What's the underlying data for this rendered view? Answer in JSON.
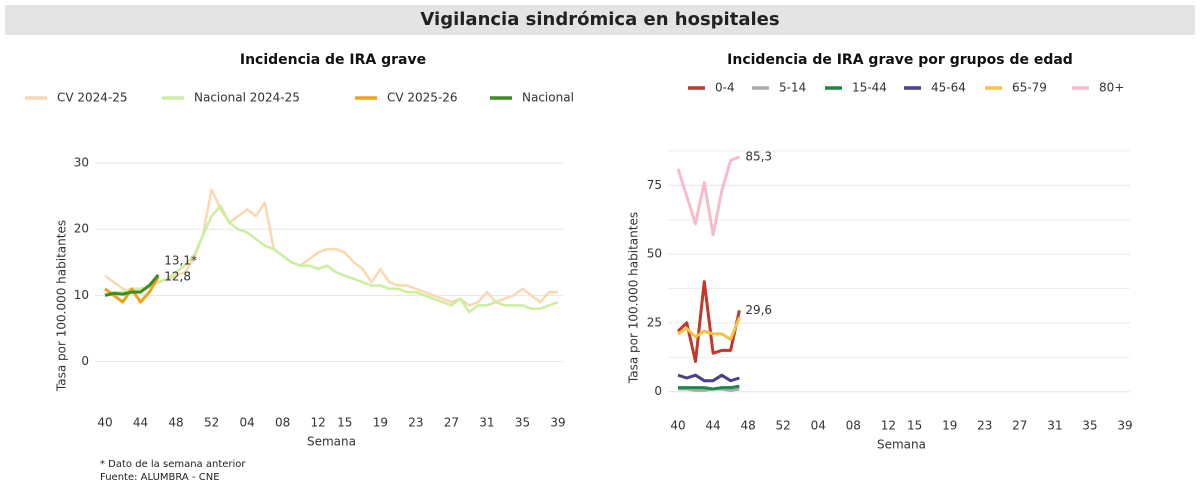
{
  "header": {
    "title": "Vigilancia sindrómica en hospitales"
  },
  "footnote": "* Dato de la semana anterior",
  "source": "Fuente: ALUMBRA - CNE",
  "chart_data": [
    {
      "type": "line",
      "title": "Incidencia de IRA grave",
      "xlabel": "Semana",
      "ylabel": "Tasa por 100.000 habitantes",
      "categories": [
        "40",
        null,
        null,
        null,
        "44",
        null,
        null,
        null,
        "48",
        null,
        null,
        null,
        "52",
        null,
        null,
        null,
        "04",
        null,
        null,
        null,
        "08",
        null,
        null,
        null,
        "12",
        null,
        null,
        "15",
        null,
        null,
        null,
        "19",
        null,
        null,
        null,
        "23",
        null,
        null,
        null,
        "27",
        null,
        null,
        null,
        "31",
        null,
        null,
        null,
        "35",
        null,
        null,
        null,
        "39"
      ],
      "ylim": [
        -7,
        30
      ],
      "yticks": [
        0,
        10,
        20,
        30
      ],
      "grid": true,
      "series": [
        {
          "name": "CV 2024-25",
          "color": "#fbd8b0",
          "values": [
            13,
            12,
            11,
            10.5,
            11,
            11.5,
            12,
            12.5,
            13,
            13.5,
            15.5,
            19,
            26,
            23,
            21,
            22,
            23,
            22,
            24,
            17,
            16,
            15,
            14.5,
            15.5,
            16.5,
            17,
            17,
            16.5,
            15,
            14,
            12,
            14,
            12,
            11.5,
            11.5,
            11,
            10.5,
            10,
            9.5,
            9,
            9.5,
            8.5,
            9,
            10.5,
            9,
            9.5,
            10,
            11,
            10,
            9,
            10.5,
            10.5
          ]
        },
        {
          "name": "Nacional 2024-25",
          "color": "#c9ef9f",
          "values": [
            10,
            10.5,
            10.5,
            11,
            11,
            11.5,
            12,
            12.5,
            13.5,
            14.5,
            16,
            19,
            22,
            23.5,
            21,
            20,
            19.5,
            18.5,
            17.5,
            17,
            16,
            15,
            14.5,
            14.5,
            14,
            14.5,
            13.5,
            13,
            12.5,
            12,
            11.5,
            11.5,
            11,
            11,
            10.5,
            10.5,
            10,
            9.5,
            9,
            8.5,
            9.5,
            7.5,
            8.5,
            8.5,
            9,
            8.5,
            8.5,
            8.5,
            8,
            8,
            8.5,
            9
          ]
        },
        {
          "name": "CV 2025-26",
          "color": "#f0a020",
          "values": [
            11,
            10,
            9,
            11,
            9,
            10.5,
            12.8,
            null,
            null,
            null,
            null,
            null,
            null,
            null,
            null,
            null,
            null,
            null,
            null,
            null,
            null,
            null,
            null,
            null,
            null,
            null,
            null,
            null,
            null,
            null,
            null,
            null,
            null,
            null,
            null,
            null,
            null,
            null,
            null,
            null,
            null,
            null,
            null,
            null,
            null,
            null,
            null,
            null,
            null,
            null,
            null,
            null
          ],
          "value_labels": [
            null,
            null,
            null,
            null,
            null,
            null,
            "12,8",
            null,
            null,
            null,
            null,
            null,
            null,
            null,
            null,
            null,
            null,
            null,
            null,
            null,
            null,
            null,
            null,
            null,
            null,
            null,
            null,
            null,
            null,
            null,
            null,
            null,
            null,
            null,
            null,
            null,
            null,
            null,
            null,
            null,
            null,
            null,
            null,
            null,
            null,
            null,
            null,
            null,
            null,
            null,
            null,
            null
          ]
        },
        {
          "name": "Nacional",
          "color": "#3d8c1f",
          "values": [
            10,
            10.3,
            10.2,
            10.5,
            10.5,
            11.5,
            13.1,
            null,
            null,
            null,
            null,
            null,
            null,
            null,
            null,
            null,
            null,
            null,
            null,
            null,
            null,
            null,
            null,
            null,
            null,
            null,
            null,
            null,
            null,
            null,
            null,
            null,
            null,
            null,
            null,
            null,
            null,
            null,
            null,
            null,
            null,
            null,
            null,
            null,
            null,
            null,
            null,
            null,
            null,
            null,
            null,
            null
          ],
          "value_labels": [
            null,
            null,
            null,
            null,
            null,
            null,
            "13,1*",
            null,
            null,
            null,
            null,
            null,
            null,
            null,
            null,
            null,
            null,
            null,
            null,
            null,
            null,
            null,
            null,
            null,
            null,
            null,
            null,
            null,
            null,
            null,
            null,
            null,
            null,
            null,
            null,
            null,
            null,
            null,
            null,
            null,
            null,
            null,
            null,
            null,
            null,
            null,
            null,
            null,
            null,
            null,
            null,
            null
          ]
        }
      ]
    },
    {
      "type": "line",
      "title": "Incidencia de IRA grave por grupos de edad",
      "xlabel": "Semana",
      "ylabel": "Tasa por 100.000 habitantes",
      "categories": [
        "40",
        null,
        null,
        null,
        "44",
        null,
        null,
        null,
        "48",
        null,
        null,
        null,
        "52",
        null,
        null,
        null,
        "04",
        null,
        null,
        null,
        "08",
        null,
        null,
        null,
        "12",
        null,
        null,
        "15",
        null,
        null,
        null,
        "19",
        null,
        null,
        null,
        "23",
        null,
        null,
        null,
        "27",
        null,
        null,
        null,
        "31",
        null,
        null,
        null,
        "35",
        null,
        null,
        null,
        "39"
      ],
      "ylim": [
        -7,
        90
      ],
      "yticks": [
        0,
        25,
        50,
        75
      ],
      "minor_yticks": [
        12.5,
        37.5,
        62.5,
        87.5
      ],
      "grid": true,
      "series": [
        {
          "name": "0-4",
          "color": "#c0392b",
          "values": [
            22,
            25,
            11,
            40,
            14,
            15,
            15,
            29.6,
            null,
            null,
            null,
            null,
            null,
            null,
            null,
            null,
            null,
            null,
            null,
            null,
            null,
            null,
            null,
            null,
            null,
            null,
            null,
            null,
            null,
            null,
            null,
            null,
            null,
            null,
            null,
            null,
            null,
            null,
            null,
            null,
            null,
            null,
            null,
            null,
            null,
            null,
            null,
            null,
            null,
            null,
            null,
            null
          ],
          "value_labels": [
            null,
            null,
            null,
            null,
            null,
            null,
            null,
            "29,6",
            null,
            null,
            null,
            null,
            null,
            null,
            null,
            null,
            null,
            null,
            null,
            null,
            null,
            null,
            null,
            null,
            null,
            null,
            null,
            null,
            null,
            null,
            null,
            null,
            null,
            null,
            null,
            null,
            null,
            null,
            null,
            null,
            null,
            null,
            null,
            null,
            null,
            null,
            null,
            null,
            null,
            null,
            null,
            null
          ]
        },
        {
          "name": "5-14",
          "color": "#aaaaaa",
          "values": [
            1,
            1,
            0.5,
            0.5,
            1,
            1,
            0.5,
            1,
            null,
            null,
            null,
            null,
            null,
            null,
            null,
            null,
            null,
            null,
            null,
            null,
            null,
            null,
            null,
            null,
            null,
            null,
            null,
            null,
            null,
            null,
            null,
            null,
            null,
            null,
            null,
            null,
            null,
            null,
            null,
            null,
            null,
            null,
            null,
            null,
            null,
            null,
            null,
            null,
            null,
            null,
            null,
            null
          ]
        },
        {
          "name": "15-44",
          "color": "#1a8a4a",
          "values": [
            1.5,
            1.5,
            1.5,
            1.5,
            1,
            1.5,
            1.5,
            2,
            null,
            null,
            null,
            null,
            null,
            null,
            null,
            null,
            null,
            null,
            null,
            null,
            null,
            null,
            null,
            null,
            null,
            null,
            null,
            null,
            null,
            null,
            null,
            null,
            null,
            null,
            null,
            null,
            null,
            null,
            null,
            null,
            null,
            null,
            null,
            null,
            null,
            null,
            null,
            null,
            null,
            null,
            null,
            null
          ]
        },
        {
          "name": "45-64",
          "color": "#4b3f8a",
          "values": [
            6,
            5,
            6,
            4,
            4,
            6,
            4,
            5,
            null,
            null,
            null,
            null,
            null,
            null,
            null,
            null,
            null,
            null,
            null,
            null,
            null,
            null,
            null,
            null,
            null,
            null,
            null,
            null,
            null,
            null,
            null,
            null,
            null,
            null,
            null,
            null,
            null,
            null,
            null,
            null,
            null,
            null,
            null,
            null,
            null,
            null,
            null,
            null,
            null,
            null,
            null,
            null
          ]
        },
        {
          "name": "65-79",
          "color": "#f5c242",
          "values": [
            21,
            23,
            20,
            22,
            21,
            21,
            19,
            27,
            null,
            null,
            null,
            null,
            null,
            null,
            null,
            null,
            null,
            null,
            null,
            null,
            null,
            null,
            null,
            null,
            null,
            null,
            null,
            null,
            null,
            null,
            null,
            null,
            null,
            null,
            null,
            null,
            null,
            null,
            null,
            null,
            null,
            null,
            null,
            null,
            null,
            null,
            null,
            null,
            null,
            null,
            null,
            null
          ]
        },
        {
          "name": "80+",
          "color": "#f7bcc9",
          "values": [
            81,
            71,
            61,
            76,
            57,
            73,
            84,
            85.3,
            null,
            null,
            null,
            null,
            null,
            null,
            null,
            null,
            null,
            null,
            null,
            null,
            null,
            null,
            null,
            null,
            null,
            null,
            null,
            null,
            null,
            null,
            null,
            null,
            null,
            null,
            null,
            null,
            null,
            null,
            null,
            null,
            null,
            null,
            null,
            null,
            null,
            null,
            null,
            null,
            null,
            null,
            null,
            null
          ],
          "value_labels": [
            null,
            null,
            null,
            null,
            null,
            null,
            null,
            "85,3",
            null,
            null,
            null,
            null,
            null,
            null,
            null,
            null,
            null,
            null,
            null,
            null,
            null,
            null,
            null,
            null,
            null,
            null,
            null,
            null,
            null,
            null,
            null,
            null,
            null,
            null,
            null,
            null,
            null,
            null,
            null,
            null,
            null,
            null,
            null,
            null,
            null,
            null,
            null,
            null,
            null,
            null,
            null,
            null
          ]
        }
      ]
    }
  ]
}
